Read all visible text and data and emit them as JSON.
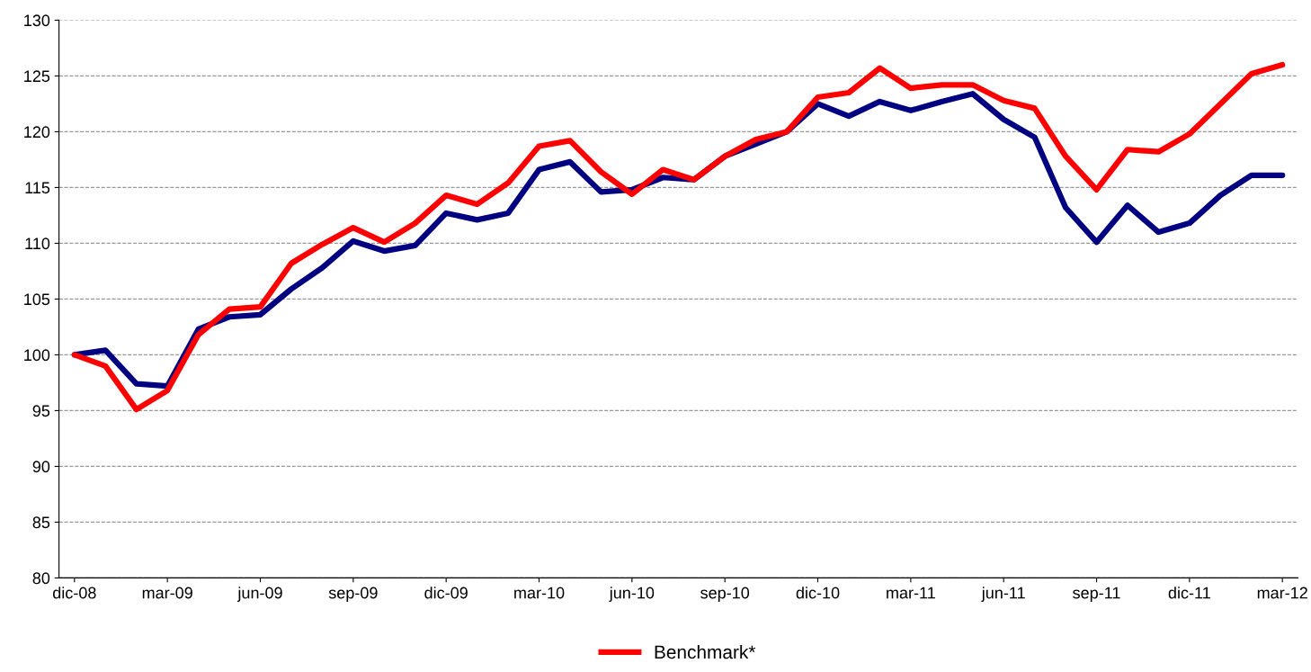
{
  "chart_data": {
    "type": "line",
    "categories": [
      "dic-08",
      null,
      null,
      "mar-09",
      null,
      null,
      "jun-09",
      null,
      null,
      "sep-09",
      null,
      null,
      "dic-09",
      null,
      null,
      "mar-10",
      null,
      null,
      "jun-10",
      null,
      null,
      "sep-10",
      null,
      null,
      "dic-10",
      null,
      null,
      "mar-11",
      null,
      null,
      "jun-11",
      null,
      null,
      "sep-11",
      null,
      null,
      "dic-11",
      null,
      null,
      "mar-12"
    ],
    "series": [
      {
        "color": "#000080",
        "values": [
          100,
          100.4,
          97.4,
          97.2,
          102.3,
          103.4,
          103.6,
          105.9,
          107.8,
          110.2,
          109.3,
          109.8,
          112.7,
          112.1,
          112.7,
          116.6,
          117.3,
          114.6,
          114.8,
          115.9,
          115.7,
          117.8,
          118.9,
          120.0,
          122.5,
          121.4,
          122.7,
          121.9,
          122.7,
          123.4,
          121.1,
          119.5,
          113.2,
          110.1,
          113.4,
          111.0,
          111.8,
          114.3,
          116.1,
          116.1
        ]
      },
      {
        "name": "Benchmark*",
        "color": "#ff0000",
        "values": [
          100,
          99.0,
          95.1,
          96.8,
          101.8,
          104.1,
          104.3,
          108.2,
          109.9,
          111.4,
          110.1,
          111.8,
          114.3,
          113.5,
          115.4,
          118.7,
          119.2,
          116.4,
          114.4,
          116.6,
          115.7,
          117.8,
          119.3,
          120.0,
          123.1,
          123.5,
          125.7,
          123.9,
          124.2,
          124.2,
          122.8,
          122.1,
          117.8,
          114.8,
          118.4,
          118.2,
          119.8,
          122.5,
          125.2,
          126.0
        ]
      }
    ],
    "ylim": [
      80,
      130
    ],
    "yticks": [
      80,
      85,
      90,
      95,
      100,
      105,
      110,
      115,
      120,
      125,
      130
    ],
    "grid": "y",
    "legend": "bottom",
    "marker": "none",
    "line_style": "solid"
  }
}
